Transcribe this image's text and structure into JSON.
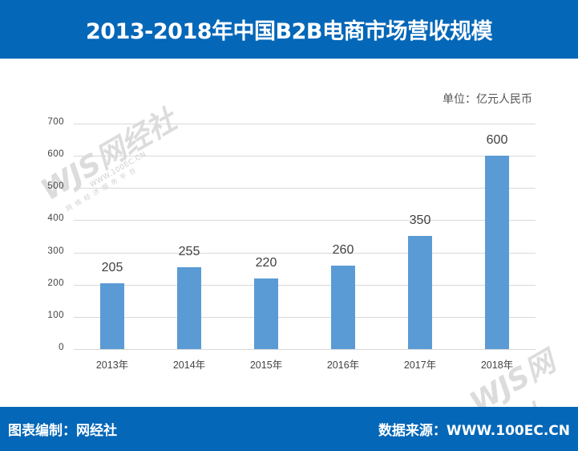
{
  "header": {
    "title": "2013-2018年中国B2B电商市场营收规模"
  },
  "unit_label": "单位：亿元人民币",
  "footer": {
    "left": "图表编制：网经社",
    "right": "数据来源：WWW.100EC.CN"
  },
  "watermark": {
    "logo": "WJS网经社",
    "url": "WWW.100EC.CN",
    "subtitle": "网络经济服务平台"
  },
  "colors": {
    "header_bg": "#0467b8",
    "bar": "#5b9bd5",
    "gridline": "#d9d9d9"
  },
  "chart_data": {
    "type": "bar",
    "title": "2013-2018年中国B2B电商市场营收规模",
    "xlabel": "",
    "ylabel": "单位：亿元人民币",
    "categories": [
      "2013年",
      "2014年",
      "2015年",
      "2016年",
      "2017年",
      "2018年"
    ],
    "values": [
      205,
      255,
      220,
      260,
      350,
      600
    ],
    "data_labels": [
      "205",
      "255",
      "220",
      "260",
      "350",
      "600"
    ],
    "yticks": [
      "0",
      "100",
      "200",
      "300",
      "400",
      "500",
      "600",
      "700"
    ],
    "ylim": [
      0,
      700
    ],
    "grid": true,
    "legend": null
  }
}
